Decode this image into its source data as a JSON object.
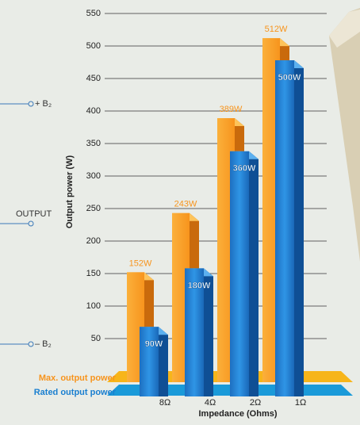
{
  "chart_data": {
    "type": "bar3d",
    "y_label": "Output power (W)",
    "x_label": "Impedance (Ohms)",
    "categories": [
      "8Ω",
      "4Ω",
      "2Ω",
      "1Ω"
    ],
    "series": [
      {
        "name": "Max. output power",
        "color": "#f7941d",
        "values": [
          152,
          243,
          389,
          512
        ],
        "value_labels": [
          "152W",
          "243W",
          "389W",
          "512W"
        ]
      },
      {
        "name": "Rated output power",
        "color": "#1a7fd0",
        "values": [
          90,
          180,
          360,
          500
        ],
        "value_labels": [
          "90W",
          "180W",
          "360W",
          "500W"
        ]
      }
    ],
    "ylim": [
      0,
      550
    ],
    "yticks": [
      50,
      100,
      150,
      200,
      250,
      300,
      350,
      400,
      450,
      500,
      550
    ],
    "grid": true,
    "annotations": [
      "+ B₂",
      "OUTPUT",
      "– B₂"
    ]
  }
}
